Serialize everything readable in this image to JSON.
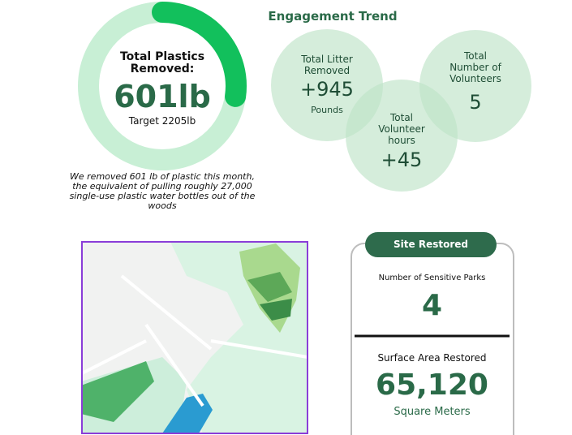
{
  "gauge": {
    "title": "Total Plastics Removed:",
    "value": 601,
    "value_label": "601lb",
    "target": 2205,
    "target_label": "Target 2205lb"
  },
  "caption": "We removed 601 lb of plastic this month, the equivalent of pulling roughly 27,000 single-use plastic water bottles out of the woods",
  "engagement": {
    "title": "Engagement Trend",
    "bubbles": [
      {
        "label": "Total Litter Removed",
        "value": "+945",
        "unit": "Pounds"
      },
      {
        "label": "Total Number of Volunteers",
        "value": "5"
      },
      {
        "label": "Total Volunteer hours",
        "value": "+45"
      }
    ]
  },
  "site": {
    "header": "Site Restored",
    "stats": [
      {
        "label": "Number of Sensitive Parks",
        "value": "4"
      },
      {
        "label": "Surface Area Restored",
        "value": "65,120",
        "unit": "Square Meters"
      }
    ]
  }
}
